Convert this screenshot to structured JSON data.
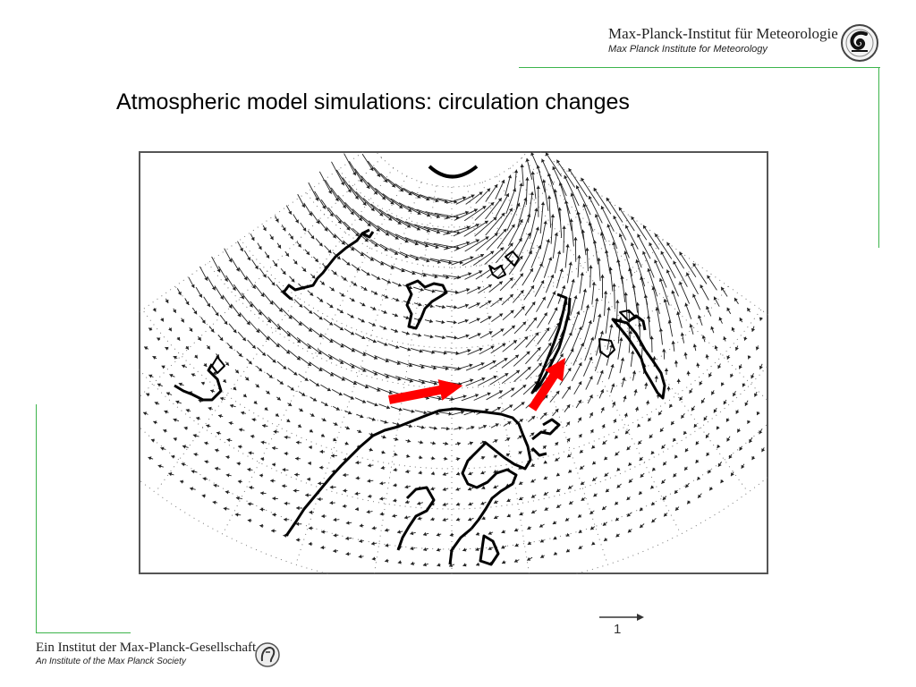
{
  "header": {
    "institute_de": "Max-Planck-Institut für Meteorologie",
    "institute_en": "Max Planck Institute for Meteorology",
    "logo_icon": "mpi-meteorology-logo-icon"
  },
  "slide": {
    "title": "Atmospheric model simulations: circulation changes"
  },
  "figure": {
    "type": "vector-field-map",
    "projection": "polar-stereographic",
    "region": "North Atlantic / Europe",
    "highlight_arrows": 2,
    "highlight_color": "#ff0000",
    "scale_label": "1"
  },
  "footer": {
    "society_de": "Ein Institut der Max-Planck-Gesellschaft",
    "society_en": "An Institute of the Max Planck Society",
    "logo_icon": "minerva-logo-icon"
  },
  "colors": {
    "accent_line": "#3cb44b",
    "map_frame": "#555555",
    "vectors": "#222222",
    "coastline": "#000000"
  }
}
